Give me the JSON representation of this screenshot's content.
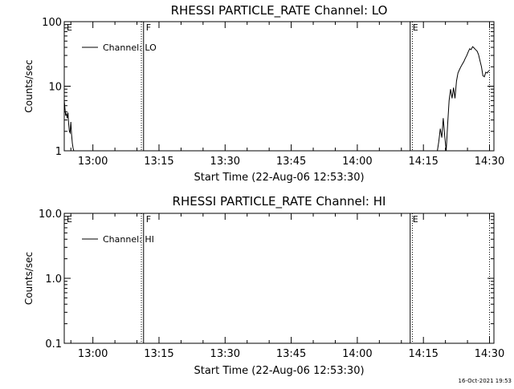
{
  "footer": {
    "timestamp": "16-Oct-2021 19:53"
  },
  "chart_data": [
    {
      "type": "line",
      "title": "RHESSI PARTICLE_RATE Channel: LO",
      "xlabel": "Start Time (22-Aug-06 12:53:30)",
      "ylabel": "Counts/sec",
      "y_scale": "log",
      "ylim": [
        1,
        100
      ],
      "x_range": [
        "12:53:30",
        "14:31"
      ],
      "x_ticks": [
        "13:00",
        "13:15",
        "13:30",
        "13:45",
        "14:00",
        "14:15",
        "14:30"
      ],
      "y_ticks": [
        "1",
        "10",
        "100"
      ],
      "legend": {
        "position": "top-left",
        "entries": [
          "Channel: LO"
        ]
      },
      "markers": [
        {
          "label": "E",
          "time": "12:53:30",
          "style": "solid"
        },
        {
          "label": "F",
          "time": "13:11:30",
          "style": "solid"
        },
        {
          "label": "E",
          "time": "14:12:00",
          "style": "solid"
        }
      ],
      "dotted_lines": [
        "13:11:00",
        "14:12:30",
        "14:30:00"
      ],
      "series": [
        {
          "name": "Channel: LO",
          "segments": [
            {
              "x": [
                "12:53:30",
                "12:53:40",
                "12:53:50",
                "12:54:00",
                "12:54:10",
                "12:54:20",
                "12:54:30",
                "12:54:40",
                "12:54:50",
                "12:55:00",
                "12:55:10",
                "12:55:20",
                "12:55:30",
                "12:55:40"
              ],
              "y": [
                6,
                4.5,
                3.5,
                3.8,
                3.2,
                3.9,
                2.6,
                2.0,
                1.9,
                2.8,
                1.8,
                1.3,
                1.1,
                1.0
              ]
            },
            {
              "x": [
                "14:18:10",
                "14:18:30",
                "14:18:50",
                "14:19:10",
                "14:19:30",
                "14:19:50",
                "14:20:10",
                "14:20:30",
                "14:20:50",
                "14:21:10",
                "14:21:30",
                "14:21:50",
                "14:22:10",
                "14:22:30",
                "14:22:50",
                "14:23:10",
                "14:23:30",
                "14:23:50",
                "14:24:10",
                "14:24:30",
                "14:24:50",
                "14:25:10",
                "14:25:30",
                "14:25:50",
                "14:26:10",
                "14:26:30",
                "14:26:50",
                "14:27:10",
                "14:27:30",
                "14:27:50",
                "14:28:10",
                "14:28:30",
                "14:28:50",
                "14:29:10",
                "14:29:30",
                "14:29:50"
              ],
              "y": [
                1.0,
                1.4,
                2.2,
                1.6,
                3.2,
                1.7,
                1.0,
                2.6,
                6.0,
                9.0,
                6.5,
                9.5,
                6.5,
                12.0,
                16.0,
                18.0,
                20.0,
                22.0,
                24.0,
                27.0,
                30.0,
                34.0,
                38.0,
                37.0,
                41.0,
                39.0,
                37.0,
                35.0,
                31.0,
                25.0,
                20.0,
                14.5,
                14.0,
                16.5,
                16.0,
                17.5
              ]
            }
          ]
        }
      ]
    },
    {
      "type": "line",
      "title": "RHESSI PARTICLE_RATE Channel: HI",
      "xlabel": "Start Time (22-Aug-06 12:53:30)",
      "ylabel": "Counts/sec",
      "y_scale": "log",
      "ylim": [
        0.1,
        10
      ],
      "x_range": [
        "12:53:30",
        "14:31"
      ],
      "x_ticks": [
        "13:00",
        "13:15",
        "13:30",
        "13:45",
        "14:00",
        "14:15",
        "14:30"
      ],
      "y_ticks": [
        "0.1",
        "1.0",
        "10.0"
      ],
      "legend": {
        "position": "top-left",
        "entries": [
          "Channel: HI"
        ]
      },
      "markers": [
        {
          "label": "E",
          "time": "12:53:30",
          "style": "solid"
        },
        {
          "label": "F",
          "time": "13:11:30",
          "style": "solid"
        },
        {
          "label": "E",
          "time": "14:12:00",
          "style": "solid"
        }
      ],
      "dotted_lines": [
        "13:11:00",
        "14:12:30",
        "14:30:00"
      ],
      "series": [
        {
          "name": "Channel: HI",
          "segments": []
        }
      ]
    }
  ]
}
